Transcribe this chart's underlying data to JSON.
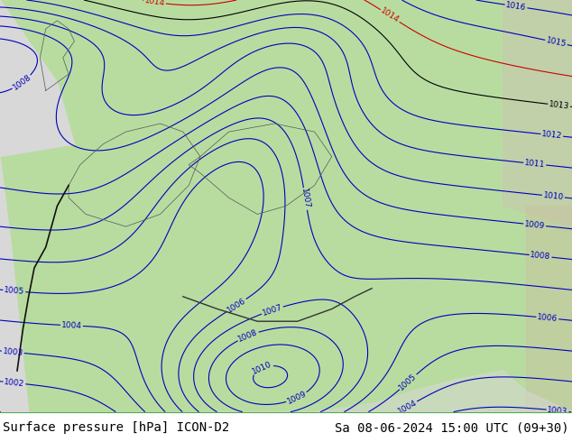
{
  "title_left": "Surface pressure [hPa] ICON-D2",
  "title_right": "Sa 08-06-2024 15:00 UTC (09+30)",
  "bg_color_land": "#b8dca0",
  "bg_color_sea": "#d8d8d8",
  "bg_color_right": "#c8b87a",
  "isobar_color_blue": "#0000bb",
  "isobar_color_black": "#000000",
  "isobar_color_red": "#cc0000",
  "font_size_title": 10,
  "font_size_labels": 6.5,
  "fig_width": 6.34,
  "fig_height": 4.9,
  "dpi": 100,
  "bottom_bar_height": 0.068,
  "bottom_bar_color": "#90ee90",
  "bottom_text_color": "#000000"
}
